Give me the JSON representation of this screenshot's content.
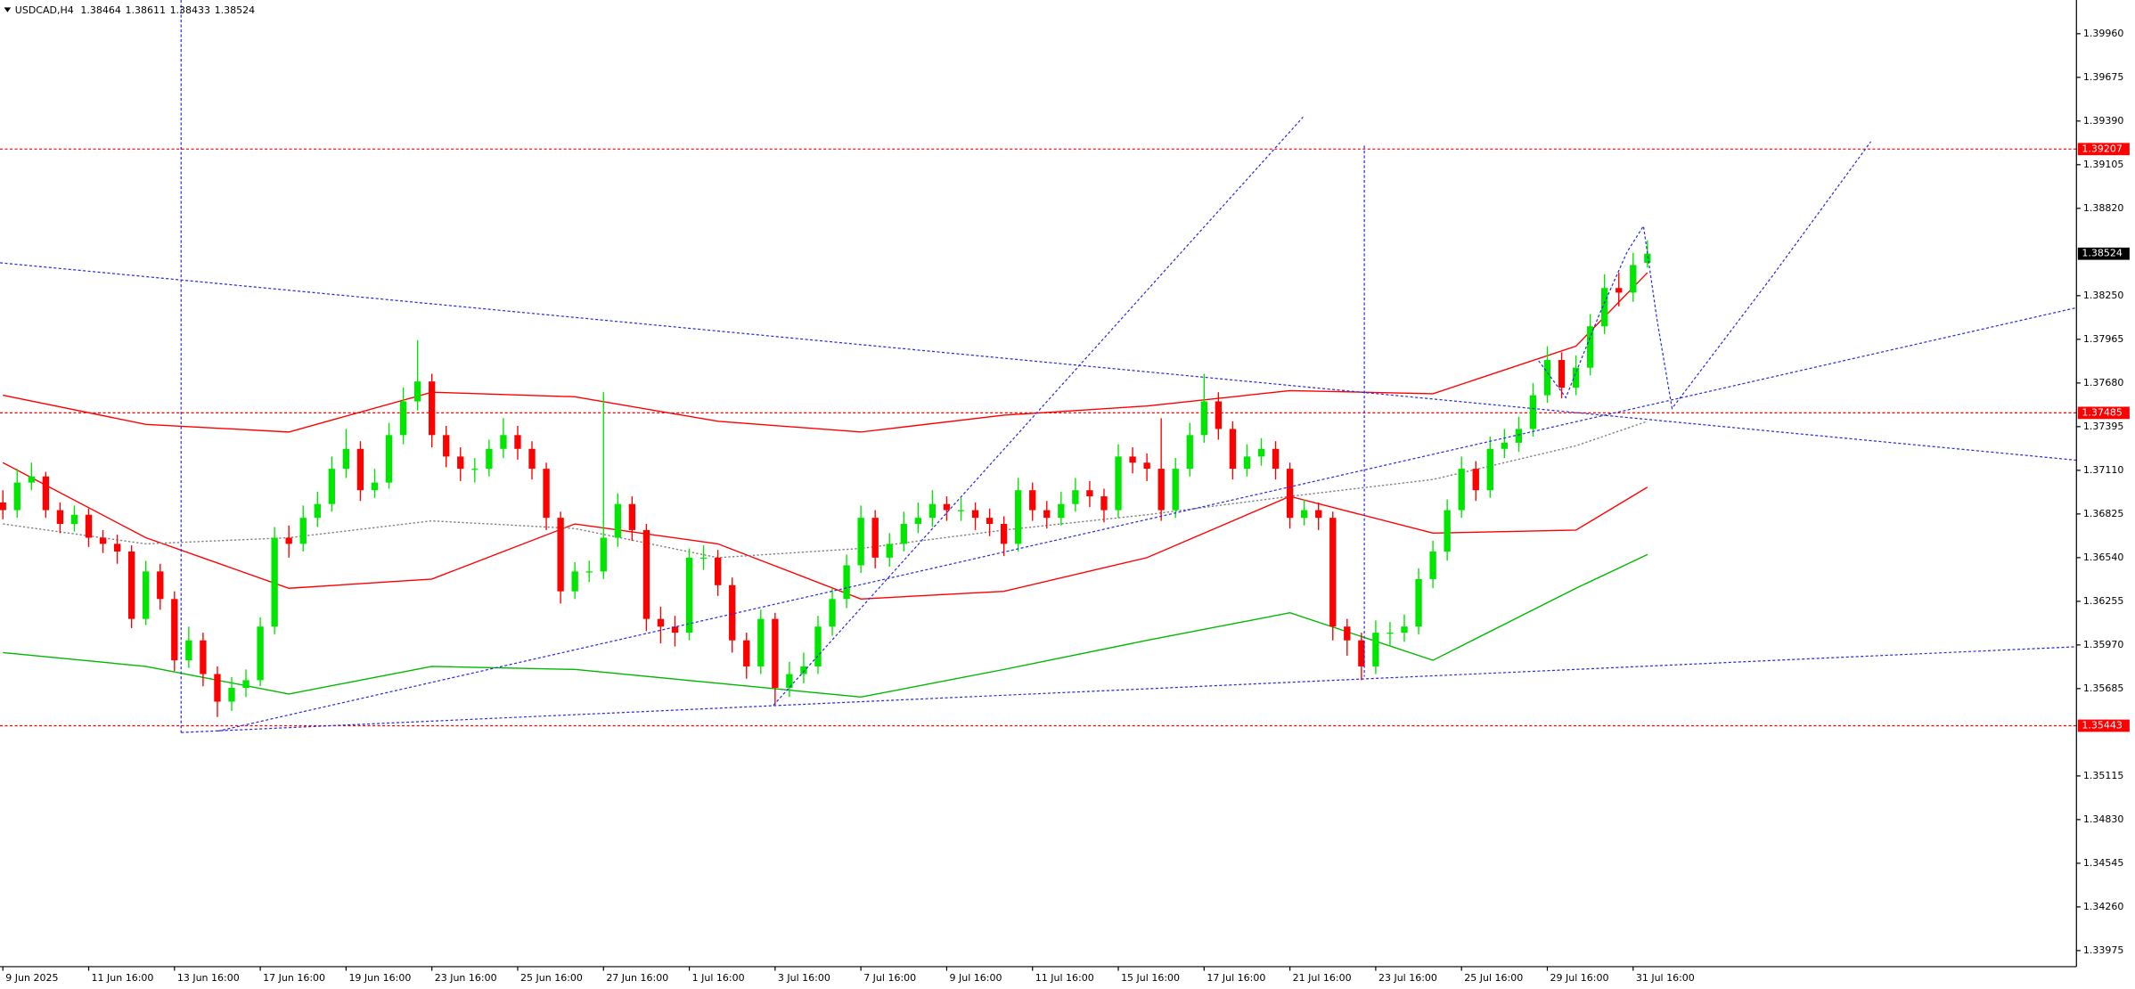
{
  "chart_data": {
    "type": "candlestick",
    "symbol": "USDCAD,H4",
    "up_color": "#00e600",
    "down_color": "#ff0000",
    "xlim": [
      -0.2,
      145
    ],
    "ylim": [
      1.3387,
      1.4018
    ],
    "xticks": [
      {
        "value": 0,
        "label": "9 Jun 2025"
      },
      {
        "value": 6,
        "label": "11 Jun 16:00"
      },
      {
        "value": 12,
        "label": "13 Jun 16:00"
      },
      {
        "value": 18,
        "label": "17 Jun 16:00"
      },
      {
        "value": 24,
        "label": "19 Jun 16:00"
      },
      {
        "value": 30,
        "label": "23 Jun 16:00"
      },
      {
        "value": 36,
        "label": "25 Jun 16:00"
      },
      {
        "value": 42,
        "label": "27 Jun 16:00"
      },
      {
        "value": 48,
        "label": "1 Jul 16:00"
      },
      {
        "value": 54,
        "label": "3 Jul 16:00"
      },
      {
        "value": 60,
        "label": "7 Jul 16:00"
      },
      {
        "value": 66,
        "label": "9 Jul 16:00"
      },
      {
        "value": 72,
        "label": "11 Jul 16:00"
      },
      {
        "value": 78,
        "label": "15 Jul 16:00"
      },
      {
        "value": 84,
        "label": "17 Jul 16:00"
      },
      {
        "value": 90,
        "label": "21 Jul 16:00"
      },
      {
        "value": 96,
        "label": "23 Jul 16:00"
      },
      {
        "value": 102,
        "label": "25 Jul 16:00"
      },
      {
        "value": 108,
        "label": "29 Jul 16:00"
      },
      {
        "value": 114,
        "label": "31 Jul 16:00"
      }
    ],
    "yticks": [
      {
        "value": 1.3996,
        "label": "1.39960"
      },
      1.39675,
      {
        "value": 1.3939,
        "label": "1.39390"
      },
      1.39105,
      {
        "value": 1.3882,
        "label": "1.38820"
      },
      {
        "value": 1.3825,
        "label": "1.38250"
      },
      1.37965,
      {
        "value": 1.3768,
        "label": "1.37680"
      },
      1.37395,
      {
        "value": 1.3711,
        "label": "1.37110"
      },
      1.36825,
      {
        "value": 1.3654,
        "label": "1.36540"
      },
      1.36255,
      {
        "value": 1.3597,
        "label": "1.35970"
      },
      1.35685,
      1.35115,
      {
        "value": 1.3483,
        "label": "1.34830"
      },
      1.34545,
      {
        "value": 1.3426,
        "label": "1.34260"
      },
      1.33975
    ],
    "levels": [
      {
        "value": 1.39207,
        "color": "#ff0000"
      },
      {
        "value": 1.37485,
        "color": "#ff0000"
      },
      {
        "value": 1.35443,
        "color": "#ff0000"
      }
    ],
    "candles": [
      [
        1.369,
        1.3698,
        1.3679,
        1.3685
      ],
      [
        1.3685,
        1.3712,
        1.368,
        1.3703
      ],
      [
        1.3703,
        1.3716,
        1.3698,
        1.3707
      ],
      [
        1.3707,
        1.371,
        1.368,
        1.3685
      ],
      [
        1.3685,
        1.369,
        1.367,
        1.3676
      ],
      [
        1.3676,
        1.3688,
        1.3671,
        1.3682
      ],
      [
        1.3682,
        1.3686,
        1.3661,
        1.3667
      ],
      [
        1.3667,
        1.3672,
        1.3657,
        1.3663
      ],
      [
        1.3663,
        1.3669,
        1.365,
        1.3658
      ],
      [
        1.3658,
        1.3662,
        1.3608,
        1.3614
      ],
      [
        1.3614,
        1.3652,
        1.361,
        1.3645
      ],
      [
        1.3645,
        1.365,
        1.362,
        1.3627
      ],
      [
        1.3627,
        1.3632,
        1.358,
        1.3587
      ],
      [
        1.3587,
        1.3609,
        1.3582,
        1.36
      ],
      [
        1.36,
        1.3605,
        1.357,
        1.3578
      ],
      [
        1.3578,
        1.3583,
        1.355,
        1.356
      ],
      [
        1.356,
        1.3576,
        1.3554,
        1.3569
      ],
      [
        1.3569,
        1.3581,
        1.3563,
        1.3574
      ],
      [
        1.3574,
        1.3615,
        1.357,
        1.3609
      ],
      [
        1.3609,
        1.3674,
        1.3604,
        1.3667
      ],
      [
        1.3667,
        1.3675,
        1.3654,
        1.3663
      ],
      [
        1.3663,
        1.3688,
        1.3658,
        1.368
      ],
      [
        1.368,
        1.3697,
        1.3674,
        1.3689
      ],
      [
        1.3689,
        1.372,
        1.3684,
        1.3712
      ],
      [
        1.3712,
        1.3738,
        1.3706,
        1.3725
      ],
      [
        1.3725,
        1.373,
        1.3691,
        1.3698
      ],
      [
        1.3698,
        1.3712,
        1.3693,
        1.3703
      ],
      [
        1.3703,
        1.3742,
        1.3699,
        1.3734
      ],
      [
        1.3734,
        1.3765,
        1.3728,
        1.3756
      ],
      [
        1.3756,
        1.3796,
        1.375,
        1.3769
      ],
      [
        1.3769,
        1.3774,
        1.3726,
        1.3734
      ],
      [
        1.3734,
        1.374,
        1.3713,
        1.372
      ],
      [
        1.372,
        1.3726,
        1.3704,
        1.3712
      ],
      [
        1.3712,
        1.3719,
        1.3703,
        1.3712
      ],
      [
        1.3712,
        1.3731,
        1.3707,
        1.3725
      ],
      [
        1.3725,
        1.3745,
        1.3719,
        1.3734
      ],
      [
        1.3734,
        1.374,
        1.3718,
        1.3725
      ],
      [
        1.3725,
        1.373,
        1.3705,
        1.3712
      ],
      [
        1.3712,
        1.3716,
        1.3672,
        1.368
      ],
      [
        1.368,
        1.3684,
        1.3624,
        1.3632
      ],
      [
        1.3632,
        1.3651,
        1.3627,
        1.3645
      ],
      [
        1.3645,
        1.3652,
        1.3638,
        1.3645
      ],
      [
        1.3645,
        1.3762,
        1.364,
        1.3667
      ],
      [
        1.3667,
        1.3696,
        1.3661,
        1.3689
      ],
      [
        1.3689,
        1.3694,
        1.3665,
        1.3672
      ],
      [
        1.3672,
        1.3676,
        1.3606,
        1.3614
      ],
      [
        1.3614,
        1.3622,
        1.3598,
        1.3609
      ],
      [
        1.3609,
        1.3616,
        1.3596,
        1.3605
      ],
      [
        1.3605,
        1.366,
        1.36,
        1.3654
      ],
      [
        1.3654,
        1.3662,
        1.3646,
        1.3654
      ],
      [
        1.3654,
        1.3659,
        1.3629,
        1.3636
      ],
      [
        1.3636,
        1.3641,
        1.3592,
        1.36
      ],
      [
        1.36,
        1.3605,
        1.3575,
        1.3583
      ],
      [
        1.3583,
        1.362,
        1.3578,
        1.3614
      ],
      [
        1.3614,
        1.3618,
        1.3558,
        1.3569
      ],
      [
        1.3569,
        1.3586,
        1.3563,
        1.3578
      ],
      [
        1.3578,
        1.3592,
        1.3572,
        1.3583
      ],
      [
        1.3583,
        1.3616,
        1.3578,
        1.3609
      ],
      [
        1.3609,
        1.3634,
        1.3603,
        1.3627
      ],
      [
        1.3627,
        1.3656,
        1.3621,
        1.3649
      ],
      [
        1.3649,
        1.3688,
        1.3644,
        1.368
      ],
      [
        1.368,
        1.3685,
        1.3647,
        1.3654
      ],
      [
        1.3654,
        1.367,
        1.3648,
        1.3663
      ],
      [
        1.3663,
        1.3684,
        1.3658,
        1.3676
      ],
      [
        1.3676,
        1.369,
        1.367,
        1.368
      ],
      [
        1.368,
        1.3698,
        1.3674,
        1.3689
      ],
      [
        1.3689,
        1.3694,
        1.3678,
        1.3685
      ],
      [
        1.3685,
        1.3693,
        1.3678,
        1.3685
      ],
      [
        1.3685,
        1.369,
        1.3672,
        1.368
      ],
      [
        1.368,
        1.3686,
        1.3668,
        1.3676
      ],
      [
        1.3676,
        1.3681,
        1.3655,
        1.3663
      ],
      [
        1.3663,
        1.3706,
        1.3658,
        1.3698
      ],
      [
        1.3698,
        1.3703,
        1.3678,
        1.3685
      ],
      [
        1.3685,
        1.3691,
        1.3673,
        1.368
      ],
      [
        1.368,
        1.3697,
        1.3675,
        1.3689
      ],
      [
        1.3689,
        1.3706,
        1.3684,
        1.3698
      ],
      [
        1.3698,
        1.3704,
        1.3687,
        1.3694
      ],
      [
        1.3694,
        1.3699,
        1.3677,
        1.3685
      ],
      [
        1.3685,
        1.3728,
        1.368,
        1.372
      ],
      [
        1.372,
        1.3726,
        1.3709,
        1.3716
      ],
      [
        1.3716,
        1.3722,
        1.3704,
        1.3712
      ],
      [
        1.3712,
        1.3745,
        1.3678,
        1.3685
      ],
      [
        1.3685,
        1.3719,
        1.368,
        1.3712
      ],
      [
        1.3712,
        1.3742,
        1.3707,
        1.3734
      ],
      [
        1.3734,
        1.3774,
        1.3729,
        1.3756
      ],
      [
        1.3756,
        1.3762,
        1.3731,
        1.3738
      ],
      [
        1.3738,
        1.3743,
        1.3705,
        1.3712
      ],
      [
        1.3712,
        1.3728,
        1.3707,
        1.372
      ],
      [
        1.372,
        1.3732,
        1.3714,
        1.3725
      ],
      [
        1.3725,
        1.373,
        1.3705,
        1.3712
      ],
      [
        1.3712,
        1.3716,
        1.3673,
        1.368
      ],
      [
        1.368,
        1.3692,
        1.3675,
        1.3685
      ],
      [
        1.3685,
        1.369,
        1.3672,
        1.368
      ],
      [
        1.368,
        1.3684,
        1.36,
        1.3609
      ],
      [
        1.3609,
        1.3614,
        1.359,
        1.36
      ],
      [
        1.36,
        1.3605,
        1.3574,
        1.3583
      ],
      [
        1.3583,
        1.3613,
        1.3578,
        1.3605
      ],
      [
        1.3605,
        1.3612,
        1.3596,
        1.3605
      ],
      [
        1.3605,
        1.3617,
        1.3599,
        1.3609
      ],
      [
        1.3609,
        1.3647,
        1.3604,
        1.364
      ],
      [
        1.364,
        1.3665,
        1.3634,
        1.3658
      ],
      [
        1.3658,
        1.3692,
        1.3652,
        1.3685
      ],
      [
        1.3685,
        1.372,
        1.368,
        1.3712
      ],
      [
        1.3712,
        1.3717,
        1.3691,
        1.3698
      ],
      [
        1.3698,
        1.3733,
        1.3693,
        1.3725
      ],
      [
        1.3725,
        1.3738,
        1.3719,
        1.3729
      ],
      [
        1.3729,
        1.3746,
        1.3723,
        1.3738
      ],
      [
        1.3738,
        1.3768,
        1.3733,
        1.376
      ],
      [
        1.376,
        1.3792,
        1.3755,
        1.3783
      ],
      [
        1.3783,
        1.3788,
        1.3758,
        1.3765
      ],
      [
        1.3765,
        1.3786,
        1.376,
        1.3778
      ],
      [
        1.3778,
        1.3813,
        1.3773,
        1.3805
      ],
      [
        1.3805,
        1.3839,
        1.38,
        1.383
      ],
      [
        1.383,
        1.384,
        1.3818,
        1.3827
      ],
      [
        1.3827,
        1.3853,
        1.3821,
        1.3845
      ],
      [
        1.38464,
        1.38611,
        1.38433,
        1.38524
      ]
    ],
    "indicators": {
      "x": [
        0,
        10,
        20,
        30,
        40,
        50,
        60,
        70,
        80,
        90,
        100,
        110,
        115
      ],
      "series": [
        {
          "color": "#ff0000",
          "dash": false,
          "values": [
            1.376,
            1.3741,
            1.3736,
            1.3762,
            1.3759,
            1.3743,
            1.3736,
            1.3747,
            1.3753,
            1.3763,
            1.3761,
            1.3792,
            1.384
          ]
        },
        {
          "color": "#ff0000",
          "dash": false,
          "values": [
            1.3716,
            1.3667,
            1.3634,
            1.364,
            1.3676,
            1.3663,
            1.3627,
            1.3632,
            1.3654,
            1.3694,
            1.367,
            1.3672,
            1.37
          ]
        },
        {
          "color": "#808080",
          "dash": true,
          "values": [
            1.3676,
            1.3663,
            1.3667,
            1.3678,
            1.3673,
            1.3654,
            1.366,
            1.3672,
            1.3682,
            1.3694,
            1.3705,
            1.3727,
            1.3743
          ]
        },
        {
          "color": "#00b800",
          "dash": false,
          "values": [
            1.3592,
            1.3583,
            1.3565,
            1.3583,
            1.3581,
            1.3572,
            1.3563,
            1.3581,
            1.36,
            1.3618,
            1.3587,
            1.3634,
            1.3656
          ]
        }
      ]
    }
  }
}
